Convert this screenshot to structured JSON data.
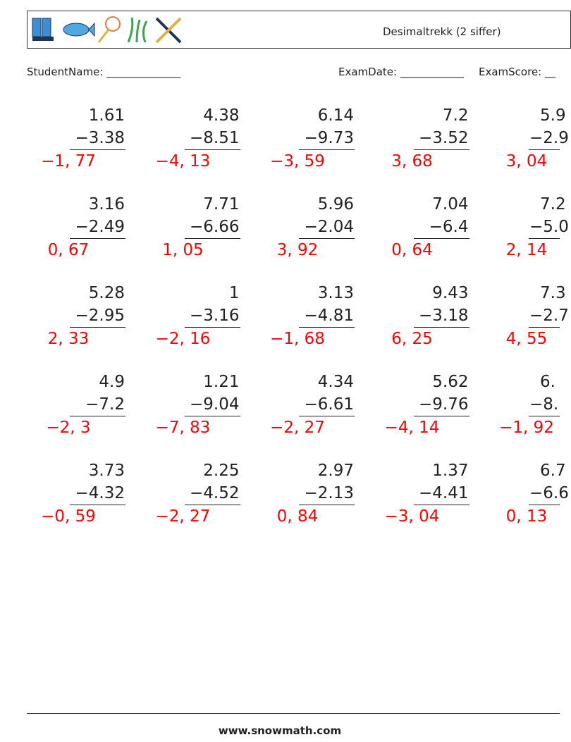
{
  "header": {
    "title": "Desimaltrekk (2 siffer)"
  },
  "fields": {
    "student_name": "StudentName: ______________",
    "exam_date": "ExamDate: ____________",
    "exam_score": "ExamScore: __"
  },
  "problems": [
    [
      {
        "a": "1.61",
        "b": "−3.38",
        "answer": "−1, 77"
      },
      {
        "a": "4.38",
        "b": "−8.51",
        "answer": "−4, 13"
      },
      {
        "a": "6.14",
        "b": "−9.73",
        "answer": "−3, 59"
      },
      {
        "a": "7.2",
        "b": "−3.52",
        "answer": "3, 68"
      },
      {
        "a": "5.9",
        "b": "−2.9",
        "answer": "3, 04"
      }
    ],
    [
      {
        "a": "3.16",
        "b": "−2.49",
        "answer": "0, 67"
      },
      {
        "a": "7.71",
        "b": "−6.66",
        "answer": "1, 05"
      },
      {
        "a": "5.96",
        "b": "−2.04",
        "answer": "3, 92"
      },
      {
        "a": "7.04",
        "b": "−6.4",
        "answer": "0, 64"
      },
      {
        "a": "7.2",
        "b": "−5.0",
        "answer": "2, 14"
      }
    ],
    [
      {
        "a": "5.28",
        "b": "−2.95",
        "answer": "2, 33"
      },
      {
        "a": "1",
        "b": "−3.16",
        "answer": "−2, 16"
      },
      {
        "a": "3.13",
        "b": "−4.81",
        "answer": "−1, 68"
      },
      {
        "a": "9.43",
        "b": "−3.18",
        "answer": "6, 25"
      },
      {
        "a": "7.3",
        "b": "−2.7",
        "answer": "4, 55"
      }
    ],
    [
      {
        "a": "4.9",
        "b": "−7.2",
        "answer": "−2, 3"
      },
      {
        "a": "1.21",
        "b": "−9.04",
        "answer": "−7, 83"
      },
      {
        "a": "4.34",
        "b": "−6.61",
        "answer": "−2, 27"
      },
      {
        "a": "5.62",
        "b": "−9.76",
        "answer": "−4, 14"
      },
      {
        "a": "6.",
        "b": "−8.",
        "answer": "−1, 92"
      }
    ],
    [
      {
        "a": "3.73",
        "b": "−4.32",
        "answer": "−0, 59"
      },
      {
        "a": "2.25",
        "b": "−4.52",
        "answer": "−2, 27"
      },
      {
        "a": "2.97",
        "b": "−2.13",
        "answer": "0, 84"
      },
      {
        "a": "1.37",
        "b": "−4.41",
        "answer": "−3, 04"
      },
      {
        "a": "6.7",
        "b": "−6.6",
        "answer": "0, 13"
      }
    ]
  ],
  "footer": {
    "site": "www.snowmath.com"
  }
}
